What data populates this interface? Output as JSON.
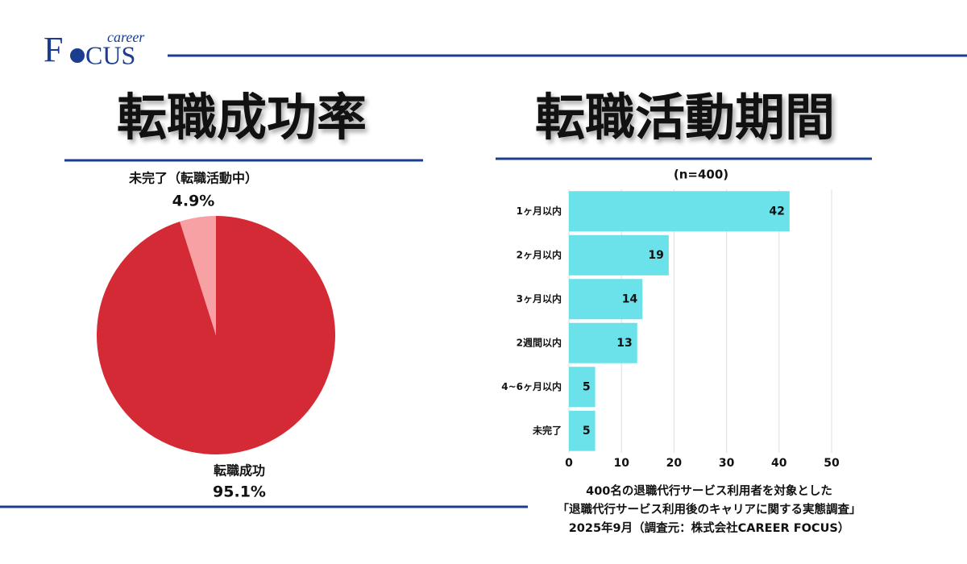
{
  "logo": {
    "sub": "career",
    "left": "F",
    "right": "CUS"
  },
  "chart_data": [
    {
      "type": "pie",
      "title": "転職成功率",
      "categories": [
        "転職成功",
        "未完了（転職活動中）"
      ],
      "values": [
        95.1,
        4.9
      ],
      "value_labels": [
        "95.1%",
        "4.9%"
      ],
      "colors": [
        "#d42a35",
        "#f7a1a4"
      ]
    },
    {
      "type": "bar",
      "orientation": "horizontal",
      "title": "転職活動期間",
      "subtitle": "(n=400)",
      "categories": [
        "1ヶ月以内",
        "2ヶ月以内",
        "3ヶ月以内",
        "2週間以内",
        "4~6ヶ月以内",
        "未完了"
      ],
      "values": [
        42,
        19,
        14,
        13,
        5,
        5
      ],
      "color": "#6be2ea",
      "xlim": [
        0,
        50
      ],
      "xticks": [
        0,
        10,
        20,
        30,
        40,
        50
      ],
      "grid": true
    }
  ],
  "footer": [
    "400名の退職代行サービス利用者を対象とした",
    "「退職代行サービス利用後のキャリアに関する実態調査」",
    "2025年9月（調査元：株式会社CAREER FOCUS）"
  ]
}
